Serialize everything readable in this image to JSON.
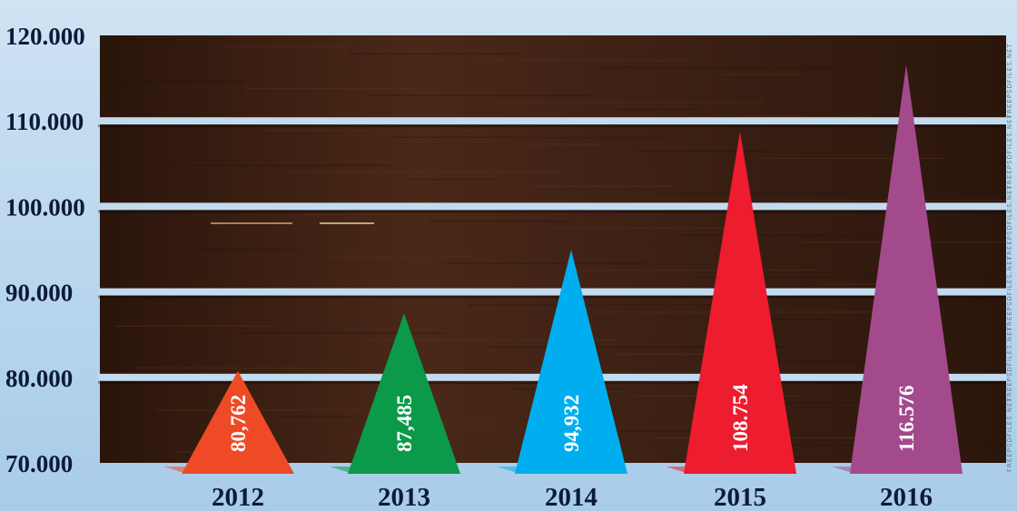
{
  "chart_data": {
    "type": "bar",
    "bar_shape": "triangle",
    "categories": [
      "2012",
      "2013",
      "2014",
      "2015",
      "2016"
    ],
    "values": [
      80762,
      87485,
      94932,
      108754,
      116576
    ],
    "data_labels": [
      "80,762",
      "87,485",
      "94,932",
      "108.754",
      "116.576"
    ],
    "y_tick_labels": [
      "70.000",
      "80.000",
      "90.000",
      "100.000",
      "110.000",
      "120.000"
    ],
    "y_ticks": [
      70000,
      80000,
      90000,
      100000,
      110000,
      120000
    ],
    "ylim": [
      70000,
      120000
    ],
    "grid": true,
    "legend": "none",
    "title": "",
    "xlabel": "",
    "ylabel": "",
    "colors": [
      "#ef4a26",
      "#0a9a49",
      "#00aeef",
      "#ed1c2e",
      "#a34a8c"
    ],
    "background": {
      "panel": "#3a1f12",
      "grid_line": "#c3dbef",
      "page": "#b9d6ee"
    }
  },
  "watermark": "FREEPSDFILES.NET"
}
